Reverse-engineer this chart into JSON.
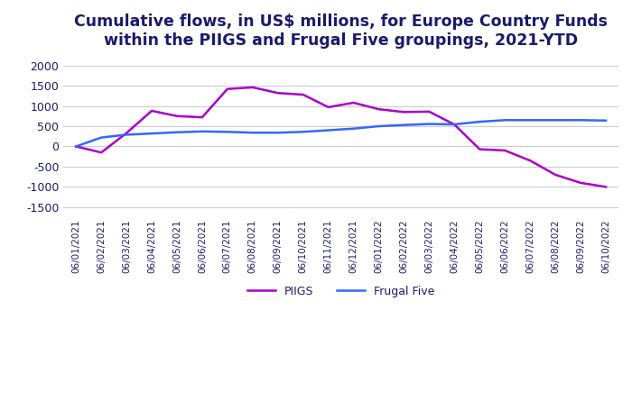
{
  "title": "Cumulative flows, in US$ millions, for Europe Country Funds\nwithin the PIIGS and Frugal Five groupings, 2021-YTD",
  "title_color": "#1a1a6e",
  "title_fontsize": 12.5,
  "title_fontweight": "bold",
  "ylim": [
    -1700,
    2200
  ],
  "yticks": [
    -1500,
    -1000,
    -500,
    0,
    500,
    1000,
    1500,
    2000
  ],
  "background_color": "#ffffff",
  "grid_color": "#cccccc",
  "piigs_color": "#aa00cc",
  "frugal_color": "#3366ff",
  "legend_labels": [
    "PIIGS",
    "Frugal Five"
  ],
  "x_labels": [
    "06/01/2021",
    "06/02/2021",
    "06/03/2021",
    "06/04/2021",
    "06/05/2021",
    "06/06/2021",
    "06/07/2021",
    "06/08/2021",
    "06/09/2021",
    "06/10/2021",
    "06/11/2021",
    "06/12/2021",
    "06/01/2022",
    "06/02/2022",
    "06/03/2022",
    "06/04/2022",
    "06/05/2022",
    "06/06/2022",
    "06/07/2022",
    "06/08/2022",
    "06/09/2022",
    "06/10/2022"
  ],
  "piigs_values": [
    0,
    -150,
    330,
    880,
    750,
    720,
    1420,
    1460,
    1320,
    1280,
    970,
    1080,
    920,
    850,
    860,
    540,
    -70,
    -100,
    -350,
    -700,
    -900,
    -1000
  ],
  "frugal_values": [
    0,
    220,
    290,
    320,
    350,
    370,
    360,
    340,
    340,
    360,
    400,
    440,
    500,
    530,
    555,
    545,
    610,
    650,
    650,
    650,
    650,
    640
  ]
}
